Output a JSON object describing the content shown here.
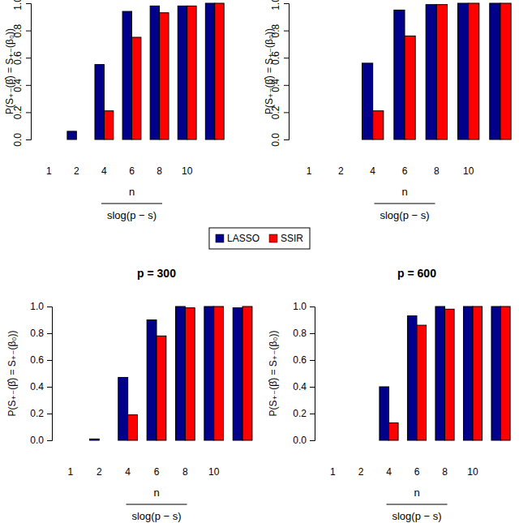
{
  "chart_data": [
    {
      "type": "bar",
      "categories": [
        "1",
        "2",
        "4",
        "6",
        "8",
        "10",
        null
      ],
      "series": [
        {
          "name": "LASSO",
          "color": "#00008b",
          "values": [
            0,
            0.06,
            0.55,
            0.94,
            0.98,
            0.98,
            1.0
          ]
        },
        {
          "name": "SSIR",
          "color": "#ff0000",
          "values": [
            0,
            0,
            0.21,
            0.75,
            0.93,
            0.98,
            1.0
          ]
        }
      ],
      "y_label": "P(S₊₋(β̂) = S₊₋(β₀))",
      "x_label": [
        "n",
        "slog(p − s)"
      ],
      "ylim": [
        0,
        1
      ],
      "yticks": [
        {
          "value": 0,
          "label": "0.0"
        },
        0.2,
        0.4,
        0.6,
        0.8,
        {
          "value": 1,
          "label": "1.0"
        }
      ],
      "legend": "center"
    },
    {
      "type": "bar",
      "categories": [
        "1",
        "2",
        "4",
        "6",
        "8",
        "10",
        null
      ],
      "series": [
        {
          "color": "#00008b",
          "values": [
            0,
            0,
            0.56,
            0.95,
            0.99,
            1.0,
            1.0
          ]
        },
        {
          "color": "#ff0000",
          "values": [
            0,
            0,
            0.21,
            0.76,
            0.99,
            1.0,
            1.0
          ]
        }
      ],
      "y_label": "P(S₊₋(β̂) = S₊₋(β₀))",
      "x_label": [
        "n",
        "slog(p − s)"
      ],
      "ylim": [
        0,
        1
      ],
      "yticks": [
        {
          "value": 0,
          "label": "0.0"
        },
        0.2,
        0.4,
        0.6,
        0.8,
        {
          "value": 1,
          "label": "1.0"
        }
      ]
    },
    {
      "type": "bar",
      "title": "p = 300",
      "categories": [
        "1",
        "2",
        "4",
        "6",
        "8",
        "10",
        null
      ],
      "series": [
        {
          "color": "#00008b",
          "values": [
            0,
            0.01,
            0.47,
            0.9,
            1.0,
            1.0,
            0.99
          ]
        },
        {
          "color": "#ff0000",
          "values": [
            0,
            0,
            0.19,
            0.78,
            0.99,
            1.0,
            1.0
          ]
        }
      ],
      "y_label": "P(S₊₋(β̂) = S₊₋(β₀))",
      "x_label": [
        "n",
        "slog(p − s)"
      ],
      "ylim": [
        0,
        1
      ],
      "yticks": [
        {
          "value": 0,
          "label": "0.0"
        },
        0.2,
        0.4,
        0.6,
        0.8,
        {
          "value": 1,
          "label": "1.0"
        }
      ]
    },
    {
      "type": "bar",
      "title": "p = 600",
      "categories": [
        "1",
        "2",
        "4",
        "6",
        "8",
        "10",
        null
      ],
      "series": [
        {
          "color": "#00008b",
          "values": [
            0,
            0,
            0.4,
            0.93,
            1.0,
            1.0,
            1.0
          ]
        },
        {
          "color": "#ff0000",
          "values": [
            0,
            0,
            0.13,
            0.86,
            0.98,
            1.0,
            1.0
          ]
        }
      ],
      "y_label": "P(S₊₋(β̂) = S₊₋(β₀))",
      "x_label": [
        "n",
        "slog(p − s)"
      ],
      "ylim": [
        0,
        1
      ],
      "yticks": [
        {
          "value": 0,
          "label": "0.0"
        },
        0.2,
        0.4,
        0.6,
        0.8,
        {
          "value": 1,
          "label": "1.0"
        }
      ]
    }
  ]
}
